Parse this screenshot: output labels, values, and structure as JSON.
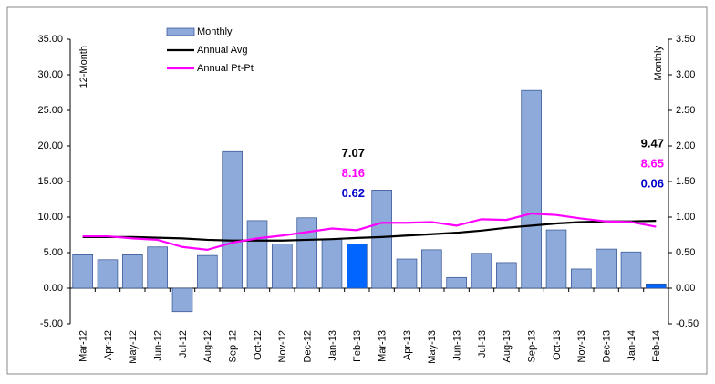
{
  "chart_data": {
    "type": "bar-line",
    "categories": [
      "Mar-12",
      "Apr-12",
      "May-12",
      "Jun-12",
      "Jul-12",
      "Aug-12",
      "Sep-12",
      "Oct-12",
      "Nov-12",
      "Dec-12",
      "Jan-13",
      "Feb-13",
      "Mar-13",
      "Apr-13",
      "May-13",
      "Jun-13",
      "Jul-13",
      "Aug-13",
      "Sep-13",
      "Oct-13",
      "Nov-13",
      "Dec-13",
      "Jan-14",
      "Feb-14"
    ],
    "y_label": "12-Month",
    "y2_label": "Monthly",
    "ylim": [
      -5,
      35
    ],
    "yticks": [
      {
        "value": -5,
        "label": "-5.00"
      },
      {
        "value": 0,
        "label": "0.00"
      },
      {
        "value": 5,
        "label": "5.00"
      },
      {
        "value": 10,
        "label": "10.00"
      },
      {
        "value": 15,
        "label": "15.00"
      },
      {
        "value": 20,
        "label": "20.00"
      },
      {
        "value": 25,
        "label": "25.00"
      },
      {
        "value": 30,
        "label": "30.00"
      },
      {
        "value": 35,
        "label": "35.00"
      }
    ],
    "y2lim": [
      -0.5,
      3.5
    ],
    "y2ticks": [
      {
        "value": -0.5,
        "label": "-0.50"
      },
      {
        "value": 0,
        "label": "0.00"
      },
      {
        "value": 0.5,
        "label": "0.50"
      },
      {
        "value": 1,
        "label": "1.00"
      },
      {
        "value": 1.5,
        "label": "1.50"
      },
      {
        "value": 2,
        "label": "2.00"
      },
      {
        "value": 2.5,
        "label": "2.50"
      },
      {
        "value": 3,
        "label": "3.00"
      },
      {
        "value": 3.5,
        "label": "3.50"
      }
    ],
    "grid": false,
    "data_label_indices": [
      11,
      23
    ],
    "series": [
      {
        "name": "Monthly",
        "kind": "bar",
        "axis": "y2",
        "color": "#8eaadb",
        "label_color": "#0000cc",
        "colors": [
          "#8eaadb",
          "#8eaadb",
          "#8eaadb",
          "#8eaadb",
          "#8eaadb",
          "#8eaadb",
          "#8eaadb",
          "#8eaadb",
          "#8eaadb",
          "#8eaadb",
          "#8eaadb",
          "#0066ff",
          "#8eaadb",
          "#8eaadb",
          "#8eaadb",
          "#8eaadb",
          "#8eaadb",
          "#8eaadb",
          "#8eaadb",
          "#8eaadb",
          "#8eaadb",
          "#8eaadb",
          "#8eaadb",
          "#0066ff"
        ],
        "values": [
          0.47,
          0.4,
          0.47,
          0.58,
          -0.33,
          0.46,
          1.92,
          0.95,
          0.62,
          0.99,
          0.69,
          0.62,
          1.38,
          0.41,
          0.54,
          0.15,
          0.49,
          0.36,
          2.78,
          0.82,
          0.27,
          0.55,
          0.51,
          0.06
        ]
      },
      {
        "name": "Annual Avg",
        "kind": "line",
        "color": "#000000",
        "label_color": "#000000",
        "values": [
          7.2,
          7.2,
          7.2,
          7.1,
          7.0,
          6.8,
          6.7,
          6.7,
          6.7,
          6.8,
          6.9,
          7.07,
          7.2,
          7.4,
          7.6,
          7.8,
          8.1,
          8.5,
          8.8,
          9.1,
          9.3,
          9.4,
          9.4,
          9.47
        ]
      },
      {
        "name": "Annual Pt-Pt",
        "kind": "line",
        "color": "#ff00ff",
        "label_color": "#ff00ff",
        "values": [
          7.3,
          7.3,
          7.0,
          6.8,
          5.8,
          5.4,
          6.4,
          7.0,
          7.4,
          7.9,
          8.4,
          8.16,
          9.2,
          9.2,
          9.3,
          8.8,
          9.7,
          9.6,
          10.5,
          10.3,
          9.8,
          9.4,
          9.3,
          8.65
        ]
      }
    ]
  }
}
